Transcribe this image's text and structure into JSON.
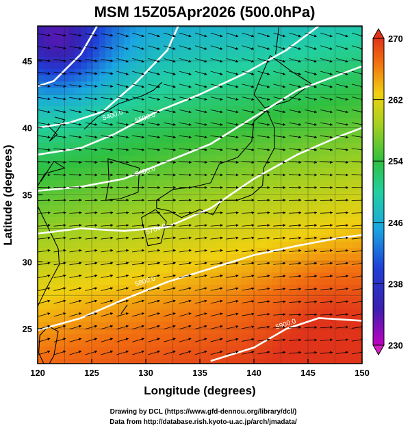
{
  "title": "MSM 15Z05Apr2026 (500.0hPa)",
  "xlabel": "Longitude (degrees)",
  "ylabel": "Latitude  (degrees)",
  "credit_lines": [
    "Drawing by DCL (https://www.gfd-dennou.org/library/dcl/)",
    "Data from http://database.rish.kyoto-u.ac.jp/arch/jmadata/"
  ],
  "chart_data": {
    "type": "heatmap",
    "title": "MSM 15Z05Apr2026 (500.0hPa)",
    "xlabel": "Longitude (degrees)",
    "ylabel": "Latitude  (degrees)",
    "xlim": [
      120,
      150
    ],
    "ylim": [
      22.4,
      47.6
    ],
    "x_ticks": [
      "120",
      "125",
      "130",
      "135",
      "140",
      "145",
      "150"
    ],
    "y_ticks": [
      "25",
      "30",
      "35",
      "40",
      "45"
    ],
    "colorbar": {
      "min": 230,
      "max": 270,
      "tick_labels": [
        "270",
        "262",
        "254",
        "246",
        "238",
        "230"
      ]
    },
    "contour_labels": [
      "5400.0",
      "5500.0",
      "5600.0",
      "5700.0",
      "5800.0",
      "5900.0"
    ],
    "grid": true,
    "vector_field": "streamlines",
    "colors": {
      "cold": "#1a2fc4",
      "mid": "#2ec24a",
      "warm": "#f06a10",
      "contour": "#ffffff",
      "coast": "#000000"
    }
  }
}
